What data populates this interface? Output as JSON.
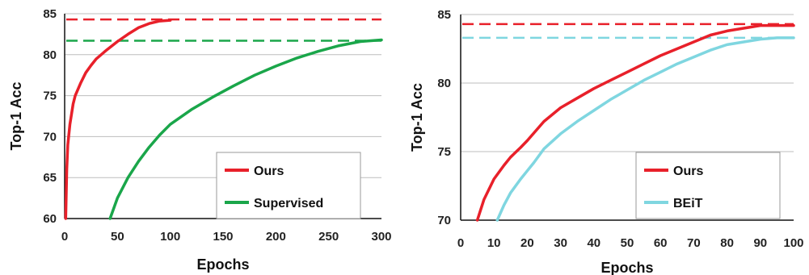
{
  "chart_data": [
    {
      "type": "line",
      "xlabel": "Epochs",
      "ylabel": "Top-1 Acc",
      "xlim": [
        0,
        300
      ],
      "ylim": [
        60,
        85
      ],
      "xticks": [
        0,
        50,
        100,
        150,
        200,
        250,
        300
      ],
      "yticks": [
        60,
        65,
        70,
        75,
        80,
        85
      ],
      "grid": "horizontal",
      "legend": "bottom-right",
      "series": [
        {
          "name": "Ours",
          "color": "#e8202a",
          "x": [
            1,
            2,
            3,
            5,
            8,
            10,
            15,
            20,
            25,
            30,
            40,
            50,
            60,
            70,
            80,
            90,
            100
          ],
          "y": [
            60,
            66,
            69,
            71.5,
            74,
            75,
            76.5,
            77.8,
            78.7,
            79.5,
            80.6,
            81.6,
            82.5,
            83.3,
            83.8,
            84.1,
            84.2
          ]
        },
        {
          "name": "Supervised",
          "color": "#1aa64a",
          "x": [
            43,
            50,
            60,
            70,
            80,
            90,
            100,
            120,
            140,
            160,
            180,
            200,
            220,
            240,
            260,
            280,
            300
          ],
          "y": [
            60,
            62.5,
            65,
            67,
            68.7,
            70.2,
            71.5,
            73.3,
            74.8,
            76.2,
            77.5,
            78.6,
            79.6,
            80.4,
            81.1,
            81.6,
            81.8
          ]
        }
      ],
      "reference_lines": [
        {
          "series": "Ours",
          "y": 84.3,
          "color": "#e8202a"
        },
        {
          "series": "Supervised",
          "y": 81.7,
          "color": "#1aa64a"
        }
      ]
    },
    {
      "type": "line",
      "xlabel": "Epochs",
      "ylabel": "Top-1 Acc",
      "xlim": [
        0,
        100
      ],
      "ylim": [
        70,
        85
      ],
      "xticks": [
        0,
        10,
        20,
        30,
        40,
        50,
        60,
        70,
        80,
        90,
        100
      ],
      "yticks": [
        70,
        75,
        80,
        85
      ],
      "grid": "horizontal",
      "legend": "bottom-right",
      "series": [
        {
          "name": "Ours",
          "color": "#e8202a",
          "x": [
            5,
            7,
            10,
            13,
            15,
            18,
            20,
            25,
            30,
            35,
            40,
            45,
            50,
            55,
            60,
            65,
            70,
            75,
            80,
            85,
            90,
            95,
            100
          ],
          "y": [
            70,
            71.5,
            73,
            74,
            74.6,
            75.3,
            75.8,
            77.2,
            78.2,
            78.9,
            79.6,
            80.2,
            80.8,
            81.4,
            82,
            82.5,
            83,
            83.5,
            83.8,
            84,
            84.2,
            84.2,
            84.2
          ]
        },
        {
          "name": "BEiT",
          "color": "#7fd6e0",
          "x": [
            11,
            13,
            15,
            18,
            20,
            22,
            25,
            30,
            35,
            40,
            45,
            50,
            55,
            60,
            65,
            70,
            75,
            80,
            85,
            90,
            95,
            100
          ],
          "y": [
            70,
            71.1,
            72,
            73,
            73.6,
            74.2,
            75.2,
            76.3,
            77.2,
            78,
            78.8,
            79.5,
            80.2,
            80.8,
            81.4,
            81.9,
            82.4,
            82.8,
            83,
            83.2,
            83.3,
            83.3
          ]
        }
      ],
      "reference_lines": [
        {
          "series": "Ours",
          "y": 84.3,
          "color": "#e8202a"
        },
        {
          "series": "BEiT",
          "y": 83.3,
          "color": "#7fd6e0"
        }
      ]
    }
  ]
}
